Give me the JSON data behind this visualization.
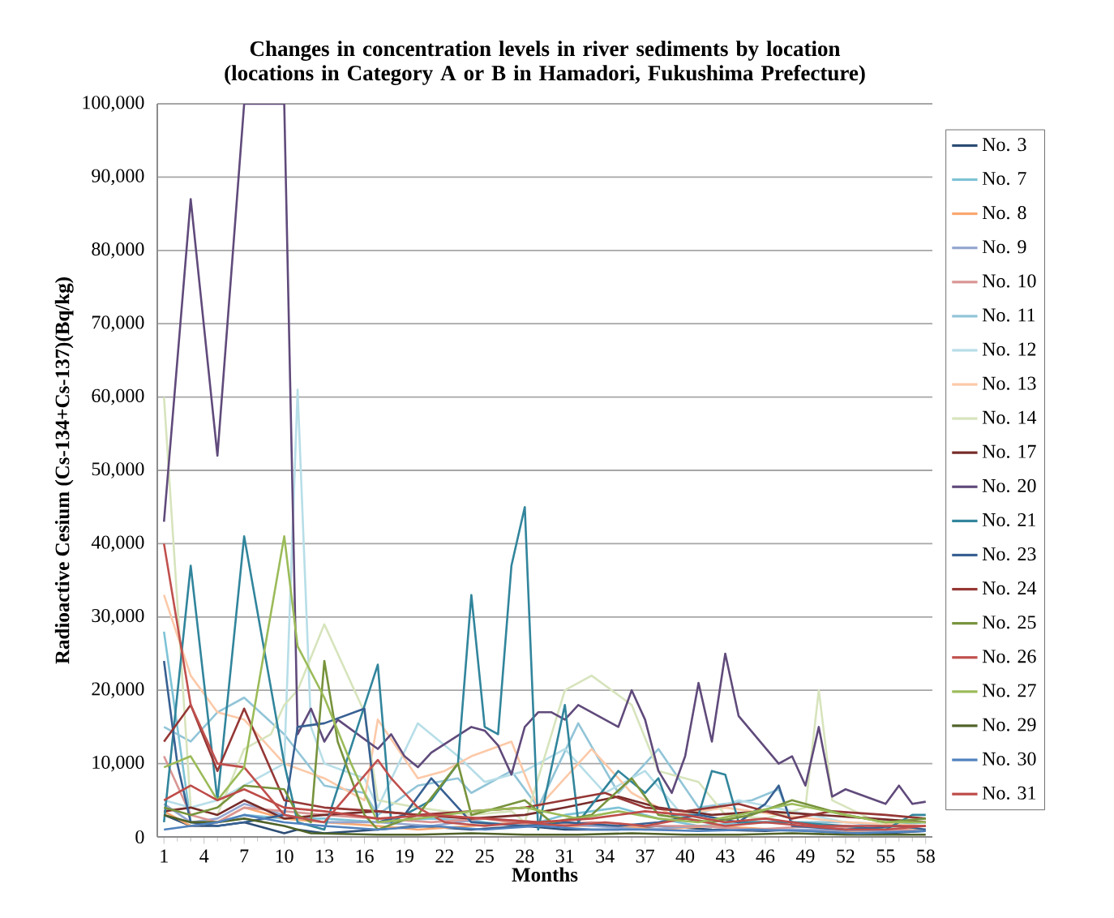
{
  "chart_data": {
    "type": "line",
    "title": "Changes in concentration levels in river sediments by location (locations in Category A or B in Hamadori, Fukushima Prefecture)",
    "xlabel": "Months",
    "ylabel": "Radioactive Cesium (Cs-134+Cs-137)(Bq/kg)",
    "xlim": [
      0.5,
      58.5
    ],
    "xticks": [
      1,
      4,
      7,
      10,
      13,
      16,
      19,
      22,
      25,
      28,
      31,
      34,
      37,
      40,
      43,
      46,
      49,
      52,
      55,
      58
    ],
    "ylim": [
      0,
      100000
    ],
    "yticks": [
      0,
      {
        "value": 10000,
        "label": "10,000"
      },
      {
        "value": 20000,
        "label": "20,000"
      },
      {
        "value": 30000,
        "label": "30,000"
      },
      {
        "value": 40000,
        "label": "40,000"
      },
      {
        "value": 50000,
        "label": "50,000"
      },
      {
        "value": 60000,
        "label": "60,000"
      },
      {
        "value": 70000,
        "label": "70,000"
      },
      {
        "value": 80000,
        "label": "80,000"
      },
      {
        "value": 90000,
        "label": "90,000"
      },
      {
        "value": 100000,
        "label": "100,000"
      }
    ],
    "grid": "y",
    "legend": "right",
    "marker": "none",
    "line_style": "solid",
    "series": [
      {
        "name": "No. 3",
        "color": "#2c4d75",
        "x": [
          1,
          3,
          5,
          7,
          10,
          11,
          13,
          17,
          20,
          24,
          28,
          31,
          35,
          38,
          42,
          46,
          48,
          52,
          55,
          58
        ],
        "values": [
          3000,
          1500,
          1500,
          2000,
          500,
          1000,
          500,
          1000,
          1500,
          1000,
          1500,
          1000,
          1000,
          1500,
          1000,
          800,
          1000,
          500,
          500,
          800
        ]
      },
      {
        "name": "No. 7",
        "color": "#7ec3d6",
        "x": [
          1,
          3,
          5,
          7,
          10,
          13,
          17,
          21,
          25,
          28,
          31,
          35,
          38,
          41,
          45,
          48,
          52,
          55,
          58
        ],
        "values": [
          28000,
          2000,
          2000,
          3000,
          2500,
          2500,
          2000,
          2500,
          2000,
          1500,
          3000,
          4000,
          2500,
          1500,
          2000,
          2000,
          1000,
          1000,
          1000
        ]
      },
      {
        "name": "No. 8",
        "color": "#f9a870",
        "x": [
          1,
          3,
          5,
          7,
          10,
          13,
          17,
          20,
          24,
          28,
          31,
          35,
          38,
          42,
          47,
          52,
          58
        ],
        "values": [
          3500,
          1500,
          2000,
          4000,
          2500,
          2000,
          1500,
          1000,
          1500,
          2000,
          1500,
          1500,
          1000,
          1500,
          1000,
          800,
          800
        ]
      },
      {
        "name": "No. 9",
        "color": "#95a7d0",
        "x": [
          1,
          3,
          5,
          7,
          10,
          13,
          17,
          21,
          25,
          29,
          33,
          37,
          41,
          45,
          50,
          55,
          58
        ],
        "values": [
          4500,
          2000,
          2500,
          4500,
          3000,
          2000,
          2000,
          1500,
          2500,
          2000,
          1500,
          1000,
          1500,
          1000,
          1000,
          800,
          800
        ]
      },
      {
        "name": "No. 10",
        "color": "#d99694",
        "x": [
          1,
          3,
          5,
          7,
          10,
          13,
          17,
          21,
          25,
          29,
          33,
          37,
          41,
          45,
          50,
          55,
          58
        ],
        "values": [
          11000,
          3000,
          2000,
          4000,
          3500,
          3000,
          2500,
          2000,
          2500,
          1500,
          2000,
          1500,
          1500,
          1000,
          1500,
          1000,
          1000
        ]
      },
      {
        "name": "No. 11",
        "color": "#92c5d8",
        "x": [
          1,
          3,
          5,
          7,
          10,
          13,
          16,
          17,
          20,
          23,
          24,
          27,
          29,
          32,
          35,
          37,
          38,
          41,
          45,
          47,
          48,
          52,
          55,
          58
        ],
        "values": [
          15000,
          13000,
          17000,
          19000,
          14000,
          7000,
          6000,
          3000,
          7000,
          8000,
          6000,
          9000,
          4000,
          15500,
          6000,
          10000,
          12000,
          4000,
          5000,
          6500,
          2000,
          2000,
          1500,
          2000
        ]
      },
      {
        "name": "No. 12",
        "color": "#b7dee8",
        "x": [
          1,
          3,
          5,
          7,
          10,
          11,
          12,
          13,
          16,
          17,
          20,
          23,
          25,
          28,
          31,
          34,
          37,
          40,
          44,
          48,
          52,
          58
        ],
        "values": [
          5000,
          4000,
          5000,
          7000,
          10000,
          61000,
          15000,
          10000,
          8000,
          4000,
          15500,
          11000,
          7500,
          9000,
          12000,
          6000,
          9000,
          2500,
          5000,
          3500,
          2000,
          1500
        ]
      },
      {
        "name": "No. 13",
        "color": "#fcc9a8",
        "x": [
          1,
          3,
          5,
          7,
          10,
          13,
          16,
          17,
          20,
          22,
          24,
          27,
          29,
          31,
          33,
          36,
          39,
          43,
          47,
          52,
          58
        ],
        "values": [
          33000,
          22000,
          17000,
          16000,
          10000,
          8000,
          5000,
          16000,
          8000,
          9000,
          11000,
          13000,
          4000,
          8000,
          12000,
          6000,
          3000,
          4000,
          3000,
          2000,
          1500
        ]
      },
      {
        "name": "No. 14",
        "color": "#d7e4bd",
        "x": [
          1,
          3,
          5,
          7,
          9,
          10,
          11,
          13,
          16,
          17,
          20,
          24,
          27,
          28,
          31,
          33,
          36,
          38,
          41,
          43,
          46,
          49,
          50,
          51,
          55,
          58
        ],
        "values": [
          60000,
          4000,
          3000,
          12000,
          14000,
          18000,
          20000,
          29000,
          17000,
          5000,
          4000,
          3000,
          3500,
          2000,
          20000,
          22000,
          18000,
          9000,
          7500,
          3000,
          2500,
          4000,
          20000,
          5000,
          1500,
          1000
        ]
      },
      {
        "name": "No. 17",
        "color": "#772c2a",
        "x": [
          1,
          3,
          5,
          7,
          10,
          13,
          17,
          20,
          24,
          28,
          31,
          35,
          38,
          42,
          46,
          50,
          54,
          58
        ],
        "values": [
          3500,
          4000,
          3000,
          5000,
          2500,
          3000,
          3500,
          3000,
          2500,
          3000,
          4000,
          5500,
          4000,
          3000,
          3500,
          3000,
          2500,
          2000
        ]
      },
      {
        "name": "No. 20",
        "color": "#604a7b",
        "x": [
          1,
          3,
          5,
          7,
          10,
          11,
          12,
          13,
          14,
          17,
          18,
          19,
          20,
          21,
          24,
          25,
          26,
          27,
          28,
          29,
          30,
          31,
          32,
          35,
          36,
          37,
          38,
          39,
          40,
          41,
          42,
          43,
          44,
          47,
          48,
          49,
          50,
          51,
          52,
          55,
          56,
          57,
          58
        ],
        "values": [
          43000,
          87000,
          52000,
          100000,
          100000,
          14000,
          17500,
          13000,
          16000,
          12000,
          14000,
          11000,
          9500,
          11500,
          15000,
          14500,
          12500,
          8500,
          15000,
          17000,
          17000,
          16000,
          18000,
          15000,
          20000,
          16000,
          9000,
          6000,
          11000,
          21000,
          13000,
          25000,
          16500,
          10000,
          11000,
          7000,
          15000,
          5500,
          6500,
          4500,
          7000,
          4500,
          4800
        ]
      },
      {
        "name": "No. 21",
        "color": "#31859c",
        "x": [
          1,
          3,
          5,
          7,
          10,
          11,
          13,
          17,
          18,
          21,
          23,
          24,
          25,
          26,
          27,
          28,
          29,
          31,
          32,
          35,
          37,
          38,
          39,
          41,
          42,
          43,
          44,
          48,
          52,
          55,
          57,
          58
        ],
        "values": [
          2000,
          37000,
          5000,
          41000,
          10000,
          2000,
          1000,
          23500,
          2000,
          5000,
          10000,
          33000,
          15000,
          14000,
          37000,
          45000,
          1000,
          18000,
          2000,
          9000,
          6000,
          8000,
          3000,
          3000,
          9000,
          8500,
          2000,
          2000,
          1500,
          1000,
          3000,
          3000
        ]
      },
      {
        "name": "No. 23",
        "color": "#376092",
        "x": [
          1,
          2,
          3,
          5,
          7,
          10,
          11,
          13,
          16,
          17,
          19,
          21,
          23,
          24,
          28,
          31,
          35,
          38,
          41,
          44,
          46,
          47,
          48,
          52,
          56,
          58
        ],
        "values": [
          24000,
          10000,
          2000,
          1500,
          2000,
          3000,
          15000,
          15500,
          17500,
          2000,
          3000,
          8000,
          4000,
          2000,
          1500,
          2000,
          1500,
          2000,
          3000,
          2000,
          4500,
          7000,
          1500,
          1000,
          1500,
          1000
        ]
      },
      {
        "name": "No. 24",
        "color": "#953735",
        "x": [
          1,
          3,
          5,
          7,
          10,
          13,
          17,
          20,
          24,
          28,
          31,
          34,
          37,
          40,
          44,
          48,
          51,
          55,
          58
        ],
        "values": [
          13000,
          18000,
          9000,
          17500,
          5000,
          4000,
          3500,
          3000,
          3500,
          4000,
          5000,
          6000,
          4000,
          3500,
          4500,
          2500,
          3500,
          3000,
          2500
        ]
      },
      {
        "name": "No. 25",
        "color": "#77933c",
        "x": [
          1,
          3,
          5,
          7,
          10,
          11,
          12,
          13,
          14,
          15,
          16,
          17,
          20,
          23,
          24,
          28,
          30,
          33,
          36,
          38,
          42,
          45,
          48,
          52,
          55,
          58
        ],
        "values": [
          4000,
          3000,
          4000,
          7000,
          6500,
          3000,
          2000,
          24000,
          13000,
          8000,
          3000,
          1000,
          3000,
          10000,
          3000,
          5000,
          2000,
          3000,
          8000,
          3000,
          2000,
          3000,
          5000,
          3000,
          2000,
          2500
        ]
      },
      {
        "name": "No. 26",
        "color": "#c0504d",
        "x": [
          1,
          3,
          5,
          7,
          10,
          13,
          17,
          18,
          20,
          22,
          25,
          28,
          31,
          34,
          37,
          40,
          43,
          46,
          49,
          52,
          55,
          58
        ],
        "values": [
          40000,
          18000,
          10000,
          9500,
          3000,
          2000,
          10500,
          8000,
          4000,
          2000,
          1500,
          2000,
          1500,
          2000,
          1500,
          2500,
          1500,
          2000,
          1500,
          1000,
          1000,
          1500
        ]
      },
      {
        "name": "No. 27",
        "color": "#9bbb59",
        "x": [
          1,
          3,
          5,
          7,
          10,
          11,
          13,
          15,
          17,
          20,
          24,
          28,
          32,
          35,
          38,
          41,
          44,
          48,
          52,
          55,
          58
        ],
        "values": [
          9500,
          11000,
          5000,
          9500,
          41000,
          26000,
          19000,
          10000,
          2000,
          2500,
          3500,
          4000,
          2500,
          3500,
          2500,
          2000,
          3000,
          4500,
          3000,
          2000,
          2000
        ]
      },
      {
        "name": "No. 29",
        "color": "#4f6228",
        "x": [
          1,
          3,
          5,
          7,
          10,
          12,
          17,
          20,
          24,
          28,
          32,
          36,
          40,
          44,
          48,
          52,
          56,
          58
        ],
        "values": [
          3000,
          2000,
          2000,
          2500,
          1500,
          500,
          300,
          300,
          500,
          300,
          300,
          500,
          300,
          300,
          500,
          300,
          300,
          300
        ]
      },
      {
        "name": "No. 30",
        "color": "#4f81bd",
        "x": [
          1,
          3,
          5,
          7,
          10,
          13,
          17,
          21,
          25,
          29,
          33,
          37,
          41,
          45,
          49,
          53,
          58
        ],
        "values": [
          1000,
          1500,
          2000,
          3000,
          2000,
          1500,
          1000,
          1500,
          1000,
          1500,
          1000,
          1000,
          800,
          1000,
          800,
          500,
          800
        ]
      },
      {
        "name": "No. 31",
        "color": "#be4b48",
        "x": [
          1,
          3,
          5,
          7,
          10,
          13,
          17,
          21,
          25,
          29,
          33,
          37,
          40,
          43,
          46,
          50,
          54,
          58
        ],
        "values": [
          5000,
          7000,
          5000,
          6500,
          4000,
          3500,
          2500,
          3000,
          2500,
          2000,
          2500,
          3500,
          3000,
          2000,
          2500,
          1500,
          1500,
          1500
        ]
      }
    ]
  }
}
